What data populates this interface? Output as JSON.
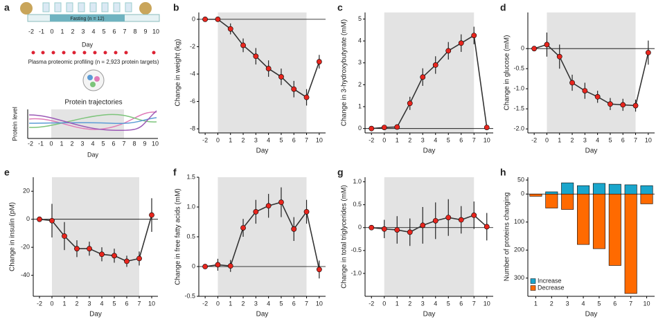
{
  "schematic": {
    "label": "a",
    "fasting_label": "Fasting (n = 12)",
    "timeline_days": [
      "-2",
      "-1",
      "0",
      "1",
      "2",
      "3",
      "4",
      "5",
      "6",
      "7",
      "8",
      "9",
      "10"
    ],
    "timeline_axis": "Day",
    "profiling": "Plasma proteomic profiling (n = 2,923 protein targets)",
    "trajectories_title": "Protein trajectories",
    "trajectories_ylabel": "Protein level",
    "trajectories_days": [
      "-2",
      "-1",
      "0",
      "1",
      "2",
      "3",
      "4",
      "5",
      "6",
      "7",
      "8",
      "9",
      "10"
    ],
    "trajectories_xlabel": "Day"
  },
  "chart_data": [
    {
      "type": "line",
      "label": "b",
      "ylabel": "Change in weight (kg)",
      "xlabel": "Day",
      "categories": [
        "-2",
        "0",
        "1",
        "2",
        "3",
        "4",
        "5",
        "6",
        "7",
        "10"
      ],
      "shaded_range": [
        "0",
        "7"
      ],
      "values": [
        0,
        0,
        -0.7,
        -1.9,
        -2.7,
        -3.6,
        -4.2,
        -5.1,
        -5.7,
        -3.1
      ],
      "errors": [
        0,
        0,
        0.4,
        0.5,
        0.6,
        0.6,
        0.6,
        0.6,
        0.6,
        0.5
      ],
      "ylim": [
        -8.3,
        0.5
      ],
      "yticks": [
        -8,
        -6,
        -4,
        -2,
        0
      ],
      "color": "#e8261e"
    },
    {
      "type": "line",
      "label": "c",
      "ylabel": "Change in 3-hydroxybutyrate (mM)",
      "xlabel": "Day",
      "categories": [
        "-2",
        "0",
        "1",
        "2",
        "3",
        "4",
        "5",
        "6",
        "7",
        "10"
      ],
      "shaded_range": [
        "0",
        "7"
      ],
      "values": [
        0,
        0.05,
        0.07,
        1.15,
        2.35,
        2.9,
        3.55,
        3.9,
        4.25,
        0.05
      ],
      "errors": [
        0,
        0.05,
        0.05,
        0.3,
        0.4,
        0.4,
        0.4,
        0.4,
        0.4,
        0.05
      ],
      "ylim": [
        -0.2,
        5.3
      ],
      "yticks": [
        0,
        1,
        2,
        3,
        4,
        5
      ],
      "color": "#e8261e"
    },
    {
      "type": "line",
      "label": "d",
      "ylabel": "Change in glucose (mM)",
      "xlabel": "Day",
      "categories": [
        "-2",
        "0",
        "1",
        "2",
        "3",
        "4",
        "5",
        "6",
        "7",
        "10"
      ],
      "shaded_range": [
        "0",
        "7"
      ],
      "values": [
        0,
        0.1,
        -0.2,
        -0.85,
        -1.05,
        -1.2,
        -1.38,
        -1.4,
        -1.42,
        -0.1
      ],
      "errors": [
        0,
        0.3,
        0.3,
        0.2,
        0.2,
        0.15,
        0.15,
        0.15,
        0.15,
        0.3
      ],
      "ylim": [
        -2.1,
        0.9
      ],
      "yticks": [
        {
          "value": -2,
          "label": "-2.0"
        },
        -1.5,
        {
          "value": -1,
          "label": "-1.0"
        },
        -0.5,
        0
      ],
      "color": "#e8261e"
    },
    {
      "type": "line",
      "label": "e",
      "ylabel": "Change in insulin (pM)",
      "xlabel": "Day",
      "categories": [
        "-2",
        "0",
        "1",
        "2",
        "3",
        "4",
        "5",
        "6",
        "7",
        "10"
      ],
      "shaded_range": [
        "0",
        "7"
      ],
      "values": [
        0,
        -1,
        -12,
        -21,
        -21,
        -25,
        -26,
        -30,
        -28,
        3
      ],
      "errors": [
        0,
        12,
        10,
        6,
        5,
        5,
        5,
        4,
        5,
        12
      ],
      "ylim": [
        -55,
        30
      ],
      "yticks": [
        -40,
        -20,
        0,
        20
      ],
      "color": "#e8261e"
    },
    {
      "type": "line",
      "label": "f",
      "ylabel": "Change in free fatty acids (mM)",
      "xlabel": "Day",
      "categories": [
        "-2",
        "0",
        "1",
        "2",
        "3",
        "4",
        "5",
        "6",
        "7",
        "10"
      ],
      "shaded_range": [
        "0",
        "7"
      ],
      "values": [
        0,
        0.03,
        0.01,
        0.65,
        0.92,
        1.02,
        1.08,
        0.63,
        0.92,
        -0.05
      ],
      "errors": [
        0,
        0.1,
        0.1,
        0.15,
        0.2,
        0.2,
        0.25,
        0.2,
        0.2,
        0.15
      ],
      "ylim": [
        -0.5,
        1.5
      ],
      "yticks": [
        -0.5,
        0,
        0.5,
        {
          "value": 1,
          "label": "1.0"
        },
        1.5
      ],
      "color": "#e8261e"
    },
    {
      "type": "line",
      "label": "g",
      "ylabel": "Change in total triglycerides (mM)",
      "xlabel": "Day",
      "categories": [
        "-2",
        "0",
        "1",
        "2",
        "3",
        "4",
        "5",
        "6",
        "7",
        "10"
      ],
      "shaded_range": [
        "0",
        "7"
      ],
      "values": [
        0,
        -0.03,
        -0.05,
        -0.1,
        0.05,
        0.15,
        0.22,
        0.17,
        0.27,
        0.02
      ],
      "errors": [
        0,
        0.2,
        0.3,
        0.3,
        0.4,
        0.4,
        0.4,
        0.3,
        0.3,
        0.3
      ],
      "ylim": [
        -1.5,
        1.1
      ],
      "yticks": [
        {
          "value": -1,
          "label": "-1.0"
        },
        -0.5,
        0,
        0.5,
        {
          "value": 1,
          "label": "1.0"
        }
      ],
      "color": "#e8261e"
    },
    {
      "type": "bar",
      "label": "h",
      "ylabel": "Number of proteins changing",
      "xlabel": "Day",
      "categories": [
        "1",
        "2",
        "3",
        "4",
        "5",
        "6",
        "7",
        "10"
      ],
      "series": [
        {
          "name": "Increase",
          "color": "#1aa6cc",
          "values": [
            0,
            8,
            40,
            30,
            38,
            35,
            33,
            30
          ]
        },
        {
          "name": "Decrease",
          "color": "#ff6a00",
          "values": [
            -8,
            -50,
            -55,
            -180,
            -195,
            -255,
            -355,
            -35
          ]
        }
      ],
      "ylim": [
        -365,
        60
      ],
      "yticks": [
        50,
        0,
        {
          "value": -100,
          "label": "100"
        },
        {
          "value": -200,
          "label": "200"
        },
        {
          "value": -300,
          "label": "300"
        }
      ],
      "legend": "lower left"
    }
  ]
}
